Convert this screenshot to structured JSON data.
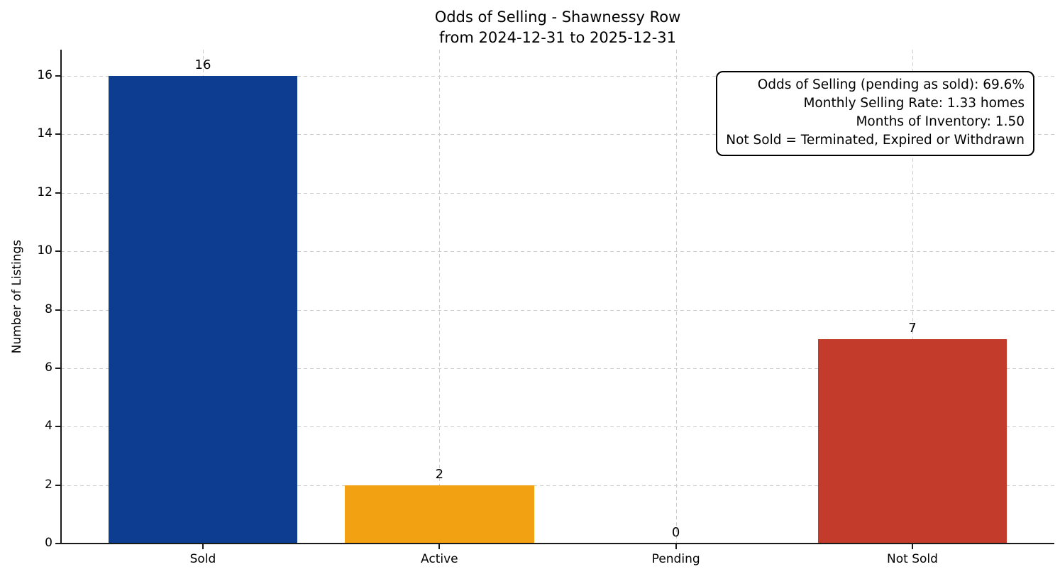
{
  "figure": {
    "background": "#ffffff"
  },
  "chart_data": {
    "type": "bar",
    "title": "Odds of Selling - Shawnessy Row",
    "subtitle": "from 2024-12-31 to 2025-12-31",
    "xlabel": "",
    "ylabel": "Number of Listings",
    "categories": [
      "Sold",
      "Active",
      "Pending",
      "Not Sold"
    ],
    "values": [
      16,
      2,
      0,
      7
    ],
    "value_labels": [
      "16",
      "2",
      "0",
      "7"
    ],
    "bars": [
      {
        "label": "Sold",
        "value": 16,
        "color": "#0d3d90"
      },
      {
        "label": "Active",
        "value": 2,
        "color": "#f2a113"
      },
      {
        "label": "Pending",
        "value": 0,
        "color": null
      },
      {
        "label": "Not Sold",
        "value": 7,
        "color": "#c23b2b"
      }
    ],
    "yticks": [
      0,
      2,
      4,
      6,
      8,
      10,
      12,
      14,
      16
    ],
    "ylim": [
      0,
      16.9
    ],
    "grid": true,
    "legend_position": "none",
    "annotation_lines": [
      "Odds of Selling (pending as sold): 69.6%",
      "Monthly Selling Rate: 1.33 homes",
      "Months of Inventory: 1.50",
      "Not Sold = Terminated, Expired or Withdrawn"
    ],
    "colors": {
      "grid": "#cccccc",
      "axis": "#1a1a1a",
      "text": "#000000"
    }
  }
}
